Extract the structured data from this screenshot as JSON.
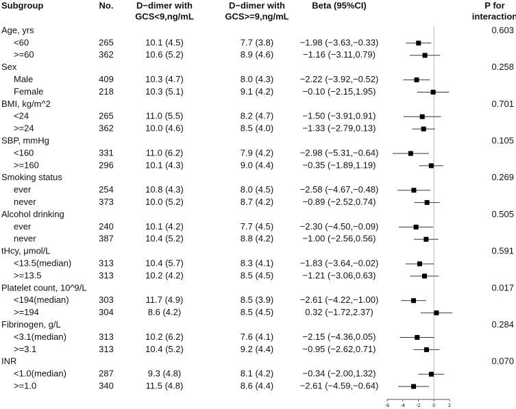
{
  "chart_data": {
    "type": "forest",
    "headers": {
      "subgroup": [
        "Subgroup"
      ],
      "n": [
        "No."
      ],
      "d1": [
        "D−dimer with",
        "GCS<9,ng/mL"
      ],
      "d2": [
        "D−dimer with",
        "GCS>=9,ng/mL"
      ],
      "beta": [
        "Beta (95%CI)"
      ],
      "p": [
        "P for",
        "interaction"
      ]
    },
    "xlim": [
      -6,
      2
    ],
    "xticks": [
      -6,
      -4,
      -2,
      0,
      2
    ],
    "groups": [
      {
        "name": "Age, yrs",
        "p": "0.603",
        "rows": [
          {
            "label": "<60",
            "n": 265,
            "d1": "10.1 (4.5)",
            "d2": "7.7 (3.8)",
            "beta_label": "−1.98 (−3.63,−0.33)",
            "estimate": -1.98,
            "lower": -3.63,
            "upper": -0.33
          },
          {
            "label": ">=60",
            "n": 362,
            "d1": "10.6 (5.2)",
            "d2": "8.9 (4.6)",
            "beta_label": "−1.16 (−3.11,0.79)",
            "estimate": -1.16,
            "lower": -3.11,
            "upper": 0.79
          }
        ]
      },
      {
        "name": "Sex",
        "p": "0.258",
        "rows": [
          {
            "label": "Male",
            "n": 409,
            "d1": "10.3 (4.7)",
            "d2": "8.0 (4.3)",
            "beta_label": "−2.22 (−3.92,−0.52)",
            "estimate": -2.22,
            "lower": -3.92,
            "upper": -0.52
          },
          {
            "label": "Female",
            "n": 218,
            "d1": "10.3 (5.1)",
            "d2": "9.1 (4.2)",
            "beta_label": "−0.10 (−2.15,1.95)",
            "estimate": -0.1,
            "lower": -2.15,
            "upper": 1.95
          }
        ]
      },
      {
        "name": "BMI, kg/m^2",
        "p": "0.701",
        "rows": [
          {
            "label": "<24",
            "n": 265,
            "d1": "11.0 (5.5)",
            "d2": "8.2 (4.7)",
            "beta_label": "−1.50 (−3.91,0.91)",
            "estimate": -1.5,
            "lower": -3.91,
            "upper": 0.91
          },
          {
            "label": ">=24",
            "n": 362,
            "d1": "10.0 (4.6)",
            "d2": "8.5 (4.0)",
            "beta_label": "−1.33 (−2.79,0.13)",
            "estimate": -1.33,
            "lower": -2.79,
            "upper": 0.13
          }
        ]
      },
      {
        "name": "SBP, mmHg",
        "p": "0.105",
        "rows": [
          {
            "label": "<160",
            "n": 331,
            "d1": "11.0 (6.2)",
            "d2": "7.9 (4.2)",
            "beta_label": "−2.98 (−5.31,−0.64)",
            "estimate": -2.98,
            "lower": -5.31,
            "upper": -0.64
          },
          {
            "label": ">=160",
            "n": 296,
            "d1": "10.1 (4.3)",
            "d2": "9.0 (4.4)",
            "beta_label": "−0.35 (−1.89,1.19)",
            "estimate": -0.35,
            "lower": -1.89,
            "upper": 1.19
          }
        ]
      },
      {
        "name": "Smoking status",
        "p": "0.269",
        "rows": [
          {
            "label": "ever",
            "n": 254,
            "d1": "10.8 (4.3)",
            "d2": "8.0 (4.5)",
            "beta_label": "−2.58 (−4.67,−0.48)",
            "estimate": -2.58,
            "lower": -4.67,
            "upper": -0.48
          },
          {
            "label": "never",
            "n": 373,
            "d1": "10.0 (5.2)",
            "d2": "8.7 (4.2)",
            "beta_label": "−0.89 (−2.52,0.74)",
            "estimate": -0.89,
            "lower": -2.52,
            "upper": 0.74
          }
        ]
      },
      {
        "name": "Alcohol drinking",
        "p": "0.505",
        "rows": [
          {
            "label": "ever",
            "n": 240,
            "d1": "10.1 (4.2)",
            "d2": "7.7 (4.5)",
            "beta_label": "−2.30 (−4.50,−0.09)",
            "estimate": -2.3,
            "lower": -4.5,
            "upper": -0.09
          },
          {
            "label": "never",
            "n": 387,
            "d1": "10.4 (5.2)",
            "d2": "8.8 (4.2)",
            "beta_label": "−1.00 (−2.56,0.56)",
            "estimate": -1.0,
            "lower": -2.56,
            "upper": 0.56
          }
        ]
      },
      {
        "name": "tHcy, μmol/L",
        "p": "0.591",
        "rows": [
          {
            "label": "<13.5(median)",
            "n": 313,
            "d1": "10.4 (5.7)",
            "d2": "8.3 (4.1)",
            "beta_label": "−1.83 (−3.64,−0.02)",
            "estimate": -1.83,
            "lower": -3.64,
            "upper": -0.02
          },
          {
            "label": ">=13.5",
            "n": 313,
            "d1": "10.2 (4.2)",
            "d2": "8.5 (4.5)",
            "beta_label": "−1.21 (−3.06,0.63)",
            "estimate": -1.21,
            "lower": -3.06,
            "upper": 0.63
          }
        ]
      },
      {
        "name": "Platelet count, 10^9/L",
        "p": "0.017",
        "rows": [
          {
            "label": "<194(median)",
            "n": 303,
            "d1": "11.7 (4.9)",
            "d2": "8.5 (3.9)",
            "beta_label": "−2.61 (−4.22,−1.00)",
            "estimate": -2.61,
            "lower": -4.22,
            "upper": -1.0
          },
          {
            "label": ">=194",
            "n": 304,
            "d1": "8.6 (4.2)",
            "d2": "8.5 (4.5)",
            "beta_label": "0.32 (−1.72,2.37)",
            "estimate": 0.32,
            "lower": -1.72,
            "upper": 2.37
          }
        ]
      },
      {
        "name": "Fibrinogen, g/L",
        "p": "0.284",
        "rows": [
          {
            "label": "<3.1(median)",
            "n": 313,
            "d1": "10.2 (6.2)",
            "d2": "7.6 (4.1)",
            "beta_label": "−2.15 (−4.36,0.05)",
            "estimate": -2.15,
            "lower": -4.36,
            "upper": 0.05
          },
          {
            "label": ">=3.1",
            "n": 313,
            "d1": "10.4 (5.2)",
            "d2": "9.2 (4.4)",
            "beta_label": "−0.95 (−2.62,0.71)",
            "estimate": -0.95,
            "lower": -2.62,
            "upper": 0.71
          }
        ]
      },
      {
        "name": "INR",
        "p": "0.070",
        "rows": [
          {
            "label": "<1.0(median)",
            "n": 287,
            "d1": "9.3 (4.8)",
            "d2": "8.1 (4.2)",
            "beta_label": "−0.34 (−2.00,1.32)",
            "estimate": -0.34,
            "lower": -2.0,
            "upper": 1.32
          },
          {
            "label": ">=1.0",
            "n": 340,
            "d1": "11.5 (4.8)",
            "d2": "8.6 (4.4)",
            "beta_label": "−2.61 (−4.59,−0.64)",
            "estimate": -2.61,
            "lower": -4.59,
            "upper": -0.64
          }
        ]
      }
    ]
  }
}
